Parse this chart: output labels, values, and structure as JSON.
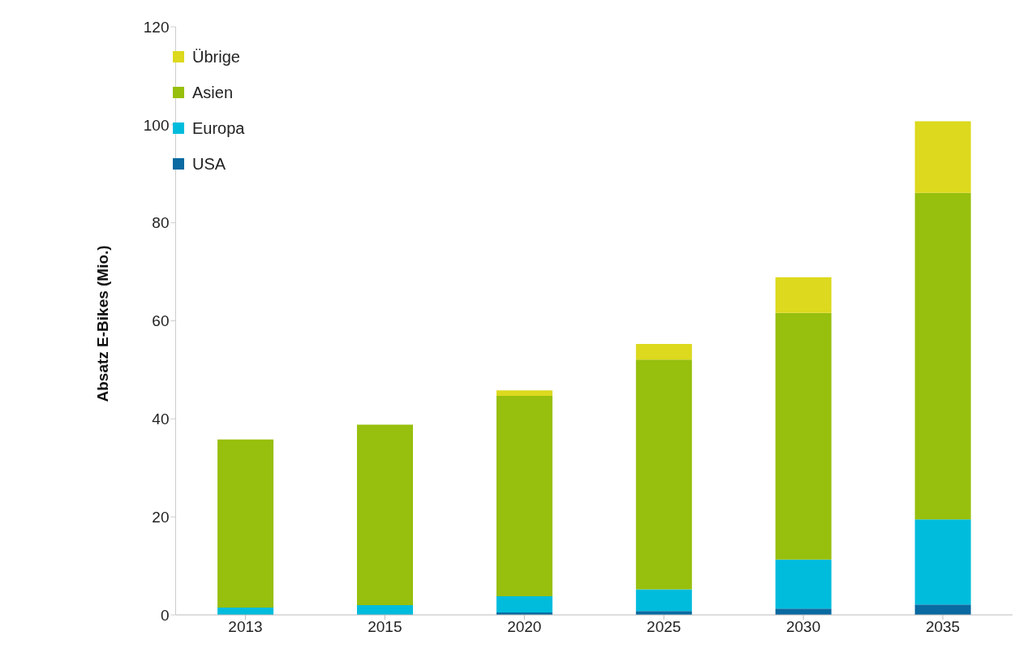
{
  "chart_data": {
    "type": "bar",
    "stacked": true,
    "ylabel": "Absatz E-Bikes (Mio.)",
    "categories": [
      "2013",
      "2015",
      "2020",
      "2025",
      "2030",
      "2035"
    ],
    "series": [
      {
        "name": "USA",
        "color": "#0a6aa1",
        "values": [
          0,
          0,
          0.5,
          0.8,
          1.3,
          2.1
        ]
      },
      {
        "name": "Europa",
        "color": "#00bcdc",
        "values": [
          1.5,
          2.0,
          3.3,
          4.4,
          10.0,
          17.4
        ]
      },
      {
        "name": "Asien",
        "color": "#97bf0d",
        "values": [
          34.3,
          36.8,
          40.9,
          46.9,
          50.3,
          66.6
        ]
      },
      {
        "name": "Übrige",
        "color": "#dcd91e",
        "values": [
          0,
          0,
          1.1,
          3.2,
          7.3,
          14.6
        ]
      }
    ],
    "ylim": [
      0,
      120
    ],
    "yticks": [
      0,
      20,
      40,
      60,
      80,
      100,
      120
    ],
    "grid": false,
    "legend": "top left"
  }
}
